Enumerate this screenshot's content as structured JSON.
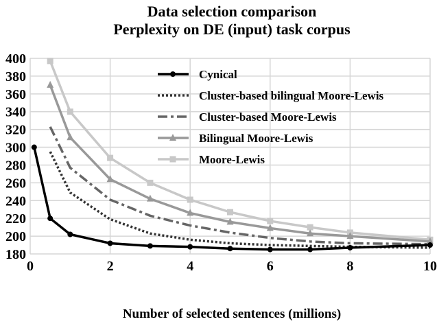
{
  "chart_data": {
    "type": "line",
    "title": [
      "Data selection comparison",
      "Perplexity on DE (input) task corpus"
    ],
    "xlabel": "Number of selected sentences (millions)",
    "ylabel": "",
    "xlim": [
      0,
      10
    ],
    "ylim": [
      180,
      400
    ],
    "xticks": [
      0,
      2,
      4,
      6,
      8,
      10
    ],
    "yticks": [
      180,
      200,
      220,
      240,
      260,
      280,
      300,
      320,
      340,
      360,
      380,
      400
    ],
    "grid": true,
    "legend_position": "top-right",
    "series": [
      {
        "name": "Cynical",
        "color": "#000000",
        "dash": "solid",
        "marker": "circle",
        "x": [
          0.1,
          0.5,
          1,
          2,
          3,
          4,
          5,
          6,
          7,
          8,
          10
        ],
        "y": [
          300,
          220,
          202,
          192,
          189,
          188,
          186,
          185,
          185,
          187,
          190
        ]
      },
      {
        "name": "Cluster-based bilingual Moore-Lewis",
        "color": "#333333",
        "dash": "dotted",
        "marker": "none",
        "x": [
          0.5,
          1,
          2,
          3,
          4,
          5,
          6,
          7,
          8,
          10
        ],
        "y": [
          295,
          249,
          219,
          203,
          196,
          192,
          190,
          189,
          188,
          187
        ]
      },
      {
        "name": "Cluster-based Moore-Lewis",
        "color": "#666666",
        "dash": "dashdot",
        "marker": "none",
        "x": [
          0.5,
          1,
          2,
          3,
          4,
          5,
          6,
          7,
          8,
          10
        ],
        "y": [
          323,
          277,
          241,
          223,
          212,
          204,
          198,
          194,
          192,
          191
        ]
      },
      {
        "name": "Bilingual Moore-Lewis",
        "color": "#999999",
        "dash": "solid",
        "marker": "triangle",
        "x": [
          0.5,
          1,
          2,
          3,
          4,
          5,
          6,
          7,
          8,
          10
        ],
        "y": [
          370,
          311,
          264,
          242,
          226,
          216,
          209,
          203,
          200,
          194
        ]
      },
      {
        "name": "Moore-Lewis",
        "color": "#c8c8c8",
        "dash": "solid",
        "marker": "square",
        "x": [
          0.5,
          1,
          2,
          3,
          4,
          5,
          6,
          7,
          8,
          10
        ],
        "y": [
          397,
          340,
          288,
          260,
          241,
          227,
          217,
          210,
          204,
          196
        ]
      }
    ]
  }
}
